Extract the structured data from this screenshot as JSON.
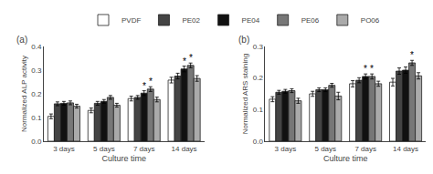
{
  "chart_data": [
    {
      "type": "bar",
      "title": "(a)",
      "xlabel": "Culture time",
      "ylabel": "Normalized ALP activity",
      "categories": [
        "3 days",
        "5 days",
        "7 days",
        "14 days"
      ],
      "series": [
        {
          "name": "PVDF",
          "color": "#ffffff",
          "values": [
            0.105,
            0.13,
            0.18,
            0.258
          ],
          "errors": [
            0.01,
            0.01,
            0.01,
            0.012
          ]
        },
        {
          "name": "PE02",
          "color": "#444444",
          "values": [
            0.158,
            0.16,
            0.185,
            0.275
          ],
          "errors": [
            0.008,
            0.008,
            0.008,
            0.012
          ]
        },
        {
          "name": "PE04",
          "color": "#111111",
          "values": [
            0.16,
            0.168,
            0.203,
            0.305
          ],
          "errors": [
            0.008,
            0.008,
            0.01,
            0.012
          ]
        },
        {
          "name": "PE06",
          "color": "#777777",
          "values": [
            0.162,
            0.185,
            0.22,
            0.32
          ],
          "errors": [
            0.008,
            0.008,
            0.01,
            0.01
          ]
        },
        {
          "name": "PO06",
          "color": "#aaaaaa",
          "values": [
            0.148,
            0.152,
            0.176,
            0.265
          ],
          "errors": [
            0.008,
            0.008,
            0.01,
            0.012
          ]
        }
      ],
      "ylim": [
        0.0,
        0.4
      ],
      "yticks": [
        {
          "value": 0.0,
          "label": "0.0"
        },
        0.1,
        0.2,
        0.3,
        0.4
      ],
      "grid": false,
      "legend": "top",
      "annotations": [
        {
          "category": "7 days",
          "series": "PE04",
          "text": "*"
        },
        {
          "category": "7 days",
          "series": "PE06",
          "text": "*"
        },
        {
          "category": "14 days",
          "series": "PE04",
          "text": "*"
        },
        {
          "category": "14 days",
          "series": "PE06",
          "text": "*"
        }
      ]
    },
    {
      "type": "bar",
      "title": "(b)",
      "xlabel": "Culture time",
      "ylabel": "Normalized ARS staining",
      "categories": [
        "3 days",
        "5 days",
        "7 days",
        "14 days"
      ],
      "series": [
        {
          "name": "PVDF",
          "color": "#ffffff",
          "values": [
            0.133,
            0.15,
            0.182,
            0.187
          ],
          "errors": [
            0.008,
            0.008,
            0.01,
            0.012
          ]
        },
        {
          "name": "PE02",
          "color": "#444444",
          "values": [
            0.155,
            0.163,
            0.193,
            0.222
          ],
          "errors": [
            0.006,
            0.006,
            0.008,
            0.01
          ]
        },
        {
          "name": "PE04",
          "color": "#111111",
          "values": [
            0.158,
            0.163,
            0.205,
            0.225
          ],
          "errors": [
            0.006,
            0.006,
            0.008,
            0.01
          ]
        },
        {
          "name": "PE06",
          "color": "#777777",
          "values": [
            0.16,
            0.177,
            0.205,
            0.248
          ],
          "errors": [
            0.006,
            0.006,
            0.008,
            0.008
          ]
        },
        {
          "name": "PO06",
          "color": "#aaaaaa",
          "values": [
            0.128,
            0.143,
            0.182,
            0.207
          ],
          "errors": [
            0.008,
            0.012,
            0.008,
            0.01
          ]
        }
      ],
      "ylim": [
        0.0,
        0.3
      ],
      "yticks": [
        {
          "value": 0.0,
          "label": "0.0"
        },
        0.1,
        0.2,
        0.3
      ],
      "grid": false,
      "legend": "top",
      "annotations": [
        {
          "category": "7 days",
          "series": "PE04",
          "text": "*"
        },
        {
          "category": "7 days",
          "series": "PE06",
          "text": "*"
        },
        {
          "category": "14 days",
          "series": "PE06",
          "text": "*"
        }
      ]
    }
  ]
}
